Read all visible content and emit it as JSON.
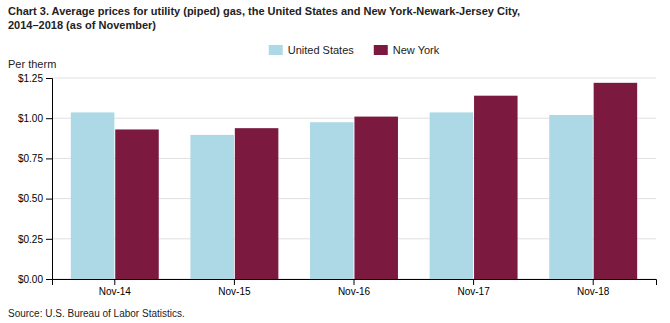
{
  "chart_data": {
    "type": "bar",
    "title": "Chart 3. Average prices for utility (piped) gas, the United States and New York-Newark-Jersey City,\n2014–2018 (as of November)",
    "ylabel": "Per therm",
    "source": "Source: U.S. Bureau of Labor Statistics.",
    "categories": [
      "Nov-14",
      "Nov-15",
      "Nov-16",
      "Nov-17",
      "Nov-18"
    ],
    "series": [
      {
        "name": "United States",
        "color": "#ADD8E6",
        "values": [
          1.036,
          0.896,
          0.975,
          1.036,
          1.02
        ]
      },
      {
        "name": "New York",
        "color": "#7B1A3E",
        "values": [
          0.93,
          0.938,
          1.01,
          1.14,
          1.22
        ]
      }
    ],
    "ylim": [
      0,
      1.25
    ],
    "yticks": [
      {
        "value": 0.0,
        "label": "$0.00"
      },
      {
        "value": 0.25,
        "label": "$0.25"
      },
      {
        "value": 0.5,
        "label": "$0.50"
      },
      {
        "value": 0.75,
        "label": "$0.75"
      },
      {
        "value": 1.0,
        "label": "$1.00"
      },
      {
        "value": 1.25,
        "label": "$1.25"
      }
    ],
    "grid": true,
    "legend": "top"
  }
}
